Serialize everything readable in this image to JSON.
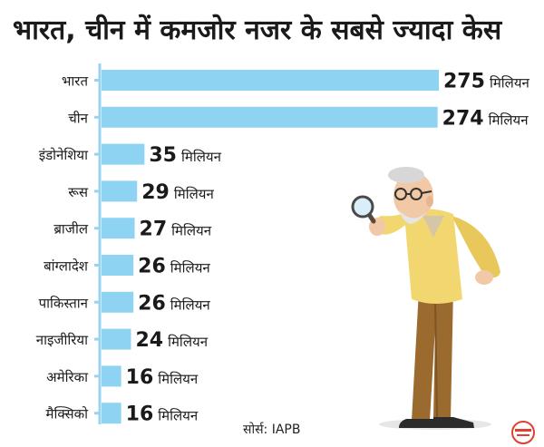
{
  "title": "भारत, चीन में कमजोर नजर के सबसे ज्यादा केस",
  "source_text": "सोर्स: IAPB",
  "logo_text": "दैनिक भास्कर",
  "colors": {
    "bar": "#8fd3f3",
    "axis": "#9ad3ef",
    "title": "#1a1a1a",
    "text": "#1a1a1a",
    "logo": "#e0402f"
  },
  "chart_data": {
    "type": "bar",
    "orientation": "horizontal",
    "categories": [
      "भारत",
      "चीन",
      "इंडोनेशिया",
      "रूस",
      "ब्राजील",
      "बांग्लादेश",
      "पाकिस्तान",
      "नाइजीरिया",
      "अमेरिका",
      "मैक्सिको"
    ],
    "values": [
      275,
      274,
      35,
      29,
      27,
      26,
      26,
      24,
      16,
      16
    ],
    "value_labels": [
      "275",
      "274",
      "35",
      "29",
      "27",
      "26",
      "26",
      "24",
      "16",
      "16"
    ],
    "unit_label": "मिलियन",
    "title": "भारत, चीन में कमजोर नजर के सबसे ज्यादा केस",
    "xlabel": "",
    "ylabel": "",
    "xlim": [
      0,
      275
    ],
    "grid": false,
    "legend": "none"
  }
}
